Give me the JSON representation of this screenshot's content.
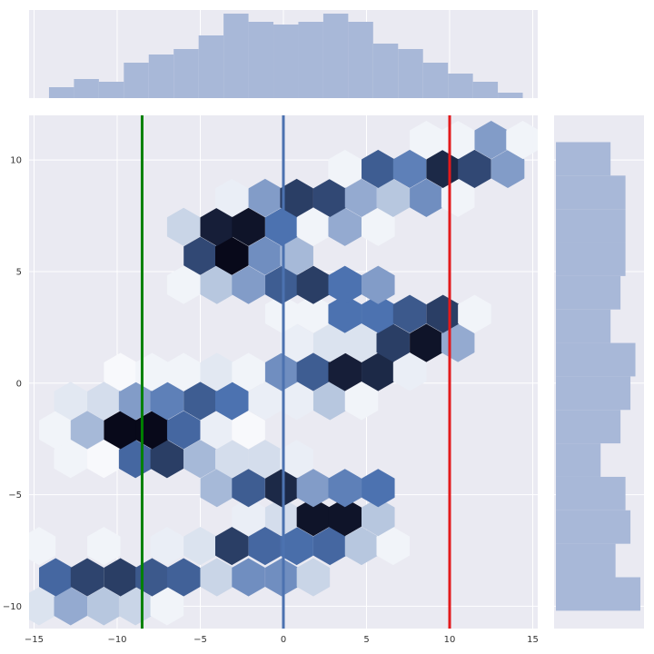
{
  "chart_data": {
    "type": "hexbin",
    "title": "",
    "xlabel": "",
    "ylabel": "",
    "xlim": [
      -15.3,
      15.3
    ],
    "ylim": [
      -11,
      12
    ],
    "xticks": [
      -15,
      -10,
      -5,
      0,
      5,
      10,
      15
    ],
    "yticks": [
      -10,
      -5,
      0,
      5,
      10
    ],
    "grid": true,
    "colormap": [
      "#ffffff",
      "#4c72b0",
      "#08091a"
    ],
    "hex_cells": [
      {
        "x": -14.7,
        "y": -10.0,
        "density": 0.1
      },
      {
        "x": -12.8,
        "y": -10.0,
        "density": 0.3
      },
      {
        "x": -10.8,
        "y": -10.0,
        "density": 0.2
      },
      {
        "x": -8.9,
        "y": -10.0,
        "density": 0.15
      },
      {
        "x": -7.0,
        "y": -10.0,
        "density": 0.04
      },
      {
        "x": -13.7,
        "y": -8.7,
        "density": 0.55
      },
      {
        "x": -11.8,
        "y": -8.7,
        "density": 0.72
      },
      {
        "x": -9.8,
        "y": -8.7,
        "density": 0.75
      },
      {
        "x": -7.9,
        "y": -8.7,
        "density": 0.62
      },
      {
        "x": -6.0,
        "y": -8.7,
        "density": 0.58
      },
      {
        "x": -4.0,
        "y": -8.7,
        "density": 0.15
      },
      {
        "x": -2.1,
        "y": -8.7,
        "density": 0.4
      },
      {
        "x": -0.1,
        "y": -8.7,
        "density": 0.4
      },
      {
        "x": 1.8,
        "y": -8.7,
        "density": 0.15
      },
      {
        "x": -14.7,
        "y": -7.3,
        "density": 0.04
      },
      {
        "x": -10.8,
        "y": -7.3,
        "density": 0.04
      },
      {
        "x": -7.0,
        "y": -7.3,
        "density": 0.06
      },
      {
        "x": -5.0,
        "y": -7.3,
        "density": 0.1
      },
      {
        "x": -3.1,
        "y": -7.3,
        "density": 0.75
      },
      {
        "x": -1.1,
        "y": -7.3,
        "density": 0.55
      },
      {
        "x": 0.8,
        "y": -7.3,
        "density": 0.52
      },
      {
        "x": 2.8,
        "y": -7.3,
        "density": 0.55
      },
      {
        "x": 4.7,
        "y": -7.3,
        "density": 0.2
      },
      {
        "x": 6.6,
        "y": -7.3,
        "density": 0.04
      },
      {
        "x": -2.1,
        "y": -6.0,
        "density": 0.06
      },
      {
        "x": -0.1,
        "y": -6.0,
        "density": 0.12
      },
      {
        "x": 1.8,
        "y": -6.0,
        "density": 0.95
      },
      {
        "x": 3.7,
        "y": -6.0,
        "density": 0.95
      },
      {
        "x": 5.7,
        "y": -6.0,
        "density": 0.2
      },
      {
        "x": -4.0,
        "y": -4.7,
        "density": 0.25
      },
      {
        "x": -2.1,
        "y": -4.7,
        "density": 0.6
      },
      {
        "x": -0.1,
        "y": -4.7,
        "density": 0.85
      },
      {
        "x": 1.8,
        "y": -4.7,
        "density": 0.35
      },
      {
        "x": 3.7,
        "y": -4.7,
        "density": 0.45
      },
      {
        "x": 5.7,
        "y": -4.7,
        "density": 0.5
      },
      {
        "x": -12.8,
        "y": -3.4,
        "density": 0.04
      },
      {
        "x": -10.8,
        "y": -3.4,
        "density": 0.02
      },
      {
        "x": -8.9,
        "y": -3.4,
        "density": 0.55
      },
      {
        "x": -7.0,
        "y": -3.4,
        "density": 0.75
      },
      {
        "x": -5.0,
        "y": -3.4,
        "density": 0.25
      },
      {
        "x": -3.1,
        "y": -3.4,
        "density": 0.12
      },
      {
        "x": -1.1,
        "y": -3.4,
        "density": 0.12
      },
      {
        "x": 0.8,
        "y": -3.4,
        "density": 0.06
      },
      {
        "x": -13.7,
        "y": -2.1,
        "density": 0.04
      },
      {
        "x": -11.8,
        "y": -2.1,
        "density": 0.25
      },
      {
        "x": -9.8,
        "y": -2.1,
        "density": 1.0
      },
      {
        "x": -7.9,
        "y": -2.1,
        "density": 1.0
      },
      {
        "x": -6.0,
        "y": -2.1,
        "density": 0.55
      },
      {
        "x": -4.0,
        "y": -2.1,
        "density": 0.06
      },
      {
        "x": -2.1,
        "y": -2.1,
        "density": 0.02
      },
      {
        "x": -12.8,
        "y": -0.8,
        "density": 0.08
      },
      {
        "x": -10.8,
        "y": -0.8,
        "density": 0.12
      },
      {
        "x": -8.9,
        "y": -0.8,
        "density": 0.35
      },
      {
        "x": -7.0,
        "y": -0.8,
        "density": 0.45
      },
      {
        "x": -5.0,
        "y": -0.8,
        "density": 0.6
      },
      {
        "x": -3.1,
        "y": -0.8,
        "density": 0.5
      },
      {
        "x": -1.1,
        "y": -0.8,
        "density": 0.06
      },
      {
        "x": 0.8,
        "y": -0.8,
        "density": 0.06
      },
      {
        "x": 2.8,
        "y": -0.8,
        "density": 0.2
      },
      {
        "x": 4.7,
        "y": -0.8,
        "density": 0.04
      },
      {
        "x": -9.8,
        "y": 0.5,
        "density": 0.02
      },
      {
        "x": -7.9,
        "y": 0.5,
        "density": 0.04
      },
      {
        "x": -6.0,
        "y": 0.5,
        "density": 0.04
      },
      {
        "x": -4.0,
        "y": 0.5,
        "density": 0.08
      },
      {
        "x": -2.1,
        "y": 0.5,
        "density": 0.04
      },
      {
        "x": -0.1,
        "y": 0.5,
        "density": 0.4
      },
      {
        "x": 1.8,
        "y": 0.5,
        "density": 0.6
      },
      {
        "x": 3.7,
        "y": 0.5,
        "density": 0.9
      },
      {
        "x": 5.7,
        "y": 0.5,
        "density": 0.85
      },
      {
        "x": 7.6,
        "y": 0.5,
        "density": 0.06
      },
      {
        "x": 0.8,
        "y": 1.8,
        "density": 0.06
      },
      {
        "x": 2.8,
        "y": 1.8,
        "density": 0.1
      },
      {
        "x": 4.7,
        "y": 1.8,
        "density": 0.1
      },
      {
        "x": 6.6,
        "y": 1.8,
        "density": 0.75
      },
      {
        "x": 8.6,
        "y": 1.8,
        "density": 0.95
      },
      {
        "x": 10.5,
        "y": 1.8,
        "density": 0.3
      },
      {
        "x": -0.1,
        "y": 3.1,
        "density": 0.04
      },
      {
        "x": 1.8,
        "y": 3.1,
        "density": 0.04
      },
      {
        "x": 3.7,
        "y": 3.1,
        "density": 0.5
      },
      {
        "x": 5.7,
        "y": 3.1,
        "density": 0.5
      },
      {
        "x": 7.6,
        "y": 3.1,
        "density": 0.62
      },
      {
        "x": 9.6,
        "y": 3.1,
        "density": 0.75
      },
      {
        "x": 11.5,
        "y": 3.1,
        "density": 0.04
      },
      {
        "x": -6.0,
        "y": 4.4,
        "density": 0.04
      },
      {
        "x": -4.0,
        "y": 4.4,
        "density": 0.2
      },
      {
        "x": -2.1,
        "y": 4.4,
        "density": 0.35
      },
      {
        "x": -0.1,
        "y": 4.4,
        "density": 0.6
      },
      {
        "x": 1.8,
        "y": 4.4,
        "density": 0.75
      },
      {
        "x": 3.7,
        "y": 4.4,
        "density": 0.5
      },
      {
        "x": 5.7,
        "y": 4.4,
        "density": 0.35
      },
      {
        "x": -5.0,
        "y": 5.7,
        "density": 0.7
      },
      {
        "x": -3.1,
        "y": 5.7,
        "density": 1.0
      },
      {
        "x": -1.1,
        "y": 5.7,
        "density": 0.4
      },
      {
        "x": 0.8,
        "y": 5.7,
        "density": 0.25
      },
      {
        "x": -6.0,
        "y": 7.0,
        "density": 0.15
      },
      {
        "x": -4.0,
        "y": 7.0,
        "density": 0.9
      },
      {
        "x": -2.1,
        "y": 7.0,
        "density": 0.95
      },
      {
        "x": -0.1,
        "y": 7.0,
        "density": 0.5
      },
      {
        "x": 1.8,
        "y": 7.0,
        "density": 0.04
      },
      {
        "x": 3.7,
        "y": 7.0,
        "density": 0.3
      },
      {
        "x": 5.7,
        "y": 7.0,
        "density": 0.04
      },
      {
        "x": -3.1,
        "y": 8.3,
        "density": 0.06
      },
      {
        "x": -1.1,
        "y": 8.3,
        "density": 0.35
      },
      {
        "x": 0.8,
        "y": 8.3,
        "density": 0.75
      },
      {
        "x": 2.8,
        "y": 8.3,
        "density": 0.7
      },
      {
        "x": 4.7,
        "y": 8.3,
        "density": 0.3
      },
      {
        "x": 6.6,
        "y": 8.3,
        "density": 0.2
      },
      {
        "x": 8.6,
        "y": 8.3,
        "density": 0.4
      },
      {
        "x": 10.5,
        "y": 8.3,
        "density": 0.04
      },
      {
        "x": 3.7,
        "y": 9.6,
        "density": 0.04
      },
      {
        "x": 5.7,
        "y": 9.6,
        "density": 0.6
      },
      {
        "x": 7.6,
        "y": 9.6,
        "density": 0.45
      },
      {
        "x": 9.6,
        "y": 9.6,
        "density": 0.85
      },
      {
        "x": 11.5,
        "y": 9.6,
        "density": 0.7
      },
      {
        "x": 13.5,
        "y": 9.6,
        "density": 0.35
      },
      {
        "x": 8.6,
        "y": 10.9,
        "density": 0.04
      },
      {
        "x": 10.5,
        "y": 10.9,
        "density": 0.04
      },
      {
        "x": 12.5,
        "y": 10.9,
        "density": 0.35
      },
      {
        "x": 14.4,
        "y": 10.9,
        "density": 0.04
      }
    ],
    "vlines": [
      {
        "x": -8.5,
        "color": "#008000"
      },
      {
        "x": 0,
        "color": "#4c72b0"
      },
      {
        "x": 10,
        "color": "#e31a1c"
      }
    ],
    "x_marginal": {
      "edges": [
        -14.1,
        -12.6,
        -11.1,
        -9.6,
        -8.1,
        -6.6,
        -5.1,
        -3.6,
        -2.1,
        -0.6,
        0.9,
        2.4,
        3.9,
        5.4,
        6.9,
        8.4,
        9.9,
        11.4,
        12.9,
        14.4
      ],
      "counts": [
        4,
        7,
        6,
        13,
        16,
        18,
        23,
        31,
        28,
        27,
        28,
        31,
        28,
        20,
        18,
        13,
        9,
        6,
        2
      ]
    },
    "y_marginal": {
      "edges": [
        -10.2,
        -8.7,
        -7.2,
        -5.7,
        -4.2,
        -2.7,
        -1.2,
        0.3,
        1.8,
        3.3,
        4.8,
        6.3,
        7.8,
        9.3,
        10.8
      ],
      "counts": [
        17,
        12,
        15,
        14,
        9,
        13,
        15,
        16,
        11,
        13,
        14,
        14,
        14,
        11
      ],
      "max": 17
    },
    "colors": {
      "panel_bg": "#eaeaf2",
      "grid": "#ffffff",
      "marginal_bar": "#a8b8d8"
    }
  }
}
